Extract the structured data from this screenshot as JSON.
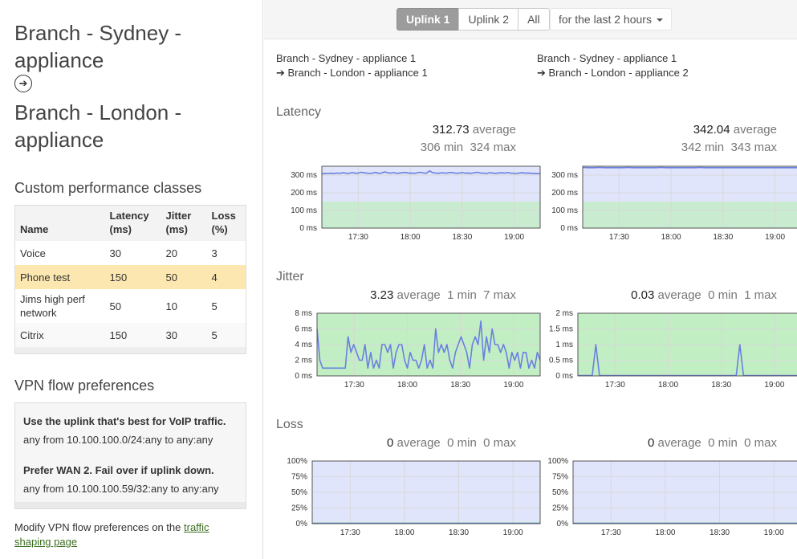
{
  "sidebar": {
    "title_from": "Branch - Sydney - appliance",
    "arrow_glyph": "➔",
    "title_to": "Branch - London - appliance",
    "classes_heading": "Custom performance classes",
    "table": {
      "headers": [
        "Name",
        "Latency (ms)",
        "Jitter (ms)",
        "Loss (%)"
      ],
      "rows": [
        [
          "Voice",
          "30",
          "20",
          "3"
        ],
        [
          "Phone test",
          "150",
          "50",
          "4"
        ],
        [
          "Jims high perf network",
          "50",
          "10",
          "5"
        ],
        [
          "Citrix",
          "150",
          "30",
          "5"
        ]
      ]
    },
    "vpn_heading": "VPN flow preferences",
    "vpn_rules": [
      {
        "title": "Use the uplink that's best for VoIP traffic.",
        "subtitle": "any from 10.100.100.0/24:any to any:any"
      },
      {
        "title": "Prefer WAN 2. Fail over if uplink down.",
        "subtitle": "any from 10.100.100.59/32:any to any:any"
      }
    ],
    "modify_prefix": "Modify VPN flow preferences on the ",
    "modify_link": "traffic shaping page"
  },
  "toolbar": {
    "segments": [
      "Uplink 1",
      "Uplink 2",
      "All"
    ],
    "active_segment": "Uplink 1",
    "range_label": "for the last 2 hours"
  },
  "columns": [
    {
      "from": "Branch - Sydney - appliance 1",
      "to": "➔ Branch - London - appliance 1"
    },
    {
      "from": "Branch - Sydney - appliance 1",
      "to": "➔ Branch - London - appliance 2"
    }
  ],
  "metrics": {
    "latency": {
      "title": "Latency",
      "stats": [
        {
          "avg": "312.73",
          "avg_label": "average",
          "min": "306",
          "min_label": "min",
          "max": "324",
          "max_label": "max"
        },
        {
          "avg": "342.04",
          "avg_label": "average",
          "min": "342",
          "min_label": "min",
          "max": "343",
          "max_label": "max"
        }
      ]
    },
    "jitter": {
      "title": "Jitter",
      "stats": [
        {
          "avg": "3.23",
          "avg_label": "average",
          "min": "1",
          "min_label": "min",
          "max": "7",
          "max_label": "max"
        },
        {
          "avg": "0.03",
          "avg_label": "average",
          "min": "0",
          "min_label": "min",
          "max": "1",
          "max_label": "max"
        }
      ]
    },
    "loss": {
      "title": "Loss",
      "stats": [
        {
          "avg": "0",
          "avg_label": "average",
          "min": "0",
          "min_label": "min",
          "max": "0",
          "max_label": "max"
        },
        {
          "avg": "0",
          "avg_label": "average",
          "min": "0",
          "min_label": "min",
          "max": "0",
          "max_label": "max"
        }
      ]
    }
  },
  "colors": {
    "line": "#6a80e0",
    "fill_over": "#e1e5fb",
    "fill_under": "#c9ecd0",
    "fill_under_strong": "#c2eec4"
  },
  "chart_data": [
    {
      "type": "line",
      "name": "latency-uplink-1",
      "x_ticks": [
        "17:30",
        "18:00",
        "18:30",
        "19:00"
      ],
      "x_tick_positions_min": [
        17.5,
        18.0,
        18.5,
        19.0
      ],
      "y_ticks": [
        "0 ms",
        "100 ms",
        "200 ms",
        "300 ms"
      ],
      "ylim": [
        0,
        350
      ],
      "threshold": 150,
      "xlim": [
        17.15,
        19.25
      ],
      "values": [
        306,
        310,
        309,
        311,
        308,
        312,
        310,
        313,
        311,
        309,
        314,
        312,
        310,
        316,
        313,
        311,
        309,
        312,
        315,
        310,
        312,
        318,
        313,
        311,
        314,
        310,
        312,
        313,
        315,
        311,
        312,
        310,
        313,
        316,
        312,
        311,
        324,
        314,
        312,
        310,
        313,
        311,
        312,
        315,
        313,
        310,
        312,
        314,
        311,
        312,
        310,
        313,
        316,
        312,
        311,
        309,
        313,
        312,
        310,
        312,
        313,
        311,
        314,
        312,
        310,
        309,
        312,
        313,
        311,
        312,
        310,
        310,
        308,
        309
      ]
    },
    {
      "type": "line",
      "name": "latency-uplink-2",
      "x_ticks": [
        "17:30",
        "18:00",
        "18:30",
        "19:00"
      ],
      "y_ticks": [
        "0 ms",
        "100 ms",
        "200 ms",
        "300 ms"
      ],
      "ylim": [
        0,
        350
      ],
      "threshold": 150,
      "xlim": [
        17.15,
        19.25
      ],
      "values": [
        343,
        342,
        342,
        343,
        342,
        342,
        342,
        342,
        343,
        342,
        342,
        342,
        342,
        342,
        343,
        342,
        342,
        342,
        342,
        342,
        342,
        343,
        342,
        342,
        342,
        342,
        342,
        342,
        342,
        342,
        342,
        342,
        342,
        342,
        342,
        342,
        342,
        342,
        342,
        343
      ]
    },
    {
      "type": "line",
      "name": "jitter-uplink-1",
      "x_ticks": [
        "17:30",
        "18:00",
        "18:30",
        "19:00"
      ],
      "y_ticks": [
        "0 ms",
        "2 ms",
        "4 ms",
        "6 ms",
        "8 ms"
      ],
      "ylim": [
        0,
        8
      ],
      "threshold": 50,
      "xlim": [
        17.15,
        19.25
      ],
      "values": [
        6,
        2,
        1,
        1,
        1,
        1,
        1,
        1,
        1,
        1,
        1,
        5,
        3,
        4,
        3,
        2,
        2,
        4,
        1,
        3,
        1,
        2,
        1,
        4,
        4,
        3,
        4,
        1,
        3,
        4,
        4,
        2,
        1,
        3,
        2,
        2,
        1,
        2,
        4,
        1,
        2,
        1,
        6,
        3,
        4,
        3,
        4,
        2,
        1,
        3,
        4,
        5,
        4,
        3,
        1,
        4,
        5,
        4,
        7,
        2,
        5,
        3,
        6,
        4,
        4,
        3,
        4,
        3,
        1,
        3,
        2,
        3,
        1,
        3,
        3,
        1,
        2,
        1,
        3,
        2
      ]
    },
    {
      "type": "line",
      "name": "jitter-uplink-2",
      "x_ticks": [
        "17:30",
        "18:00",
        "18:30",
        "19:00"
      ],
      "y_ticks": [
        "0 ms",
        "0.5 ms",
        "1 ms",
        "1.5 ms",
        "2 ms"
      ],
      "ylim": [
        0,
        2
      ],
      "threshold": 50,
      "xlim": [
        17.15,
        19.25
      ],
      "values": [
        0,
        0,
        0,
        0,
        0,
        1,
        0,
        0,
        0,
        0,
        0,
        0,
        0,
        0,
        0,
        0,
        0,
        0,
        0,
        0,
        0,
        0,
        0,
        0,
        0,
        0,
        0,
        0,
        0,
        0,
        0,
        0,
        0,
        0,
        0,
        0,
        0,
        0,
        0,
        0,
        0,
        0,
        0,
        0,
        0,
        1,
        0,
        0,
        0,
        0,
        0,
        0,
        0,
        0,
        0,
        0,
        0,
        0,
        0,
        0,
        0,
        0,
        0
      ]
    },
    {
      "type": "line",
      "name": "loss-uplink-1",
      "x_ticks": [
        "17:30",
        "18:00",
        "18:30",
        "19:00"
      ],
      "y_ticks": [
        "0%",
        "25%",
        "50%",
        "75%",
        "100%"
      ],
      "ylim": [
        0,
        100
      ],
      "threshold": 3,
      "xlim": [
        17.15,
        19.25
      ],
      "values": [
        0,
        0
      ]
    },
    {
      "type": "line",
      "name": "loss-uplink-2",
      "x_ticks": [
        "17:30",
        "18:00",
        "18:30",
        "19:00"
      ],
      "y_ticks": [
        "0%",
        "25%",
        "50%",
        "75%",
        "100%"
      ],
      "ylim": [
        0,
        100
      ],
      "threshold": 3,
      "xlim": [
        17.15,
        19.25
      ],
      "values": [
        0,
        0
      ]
    }
  ]
}
